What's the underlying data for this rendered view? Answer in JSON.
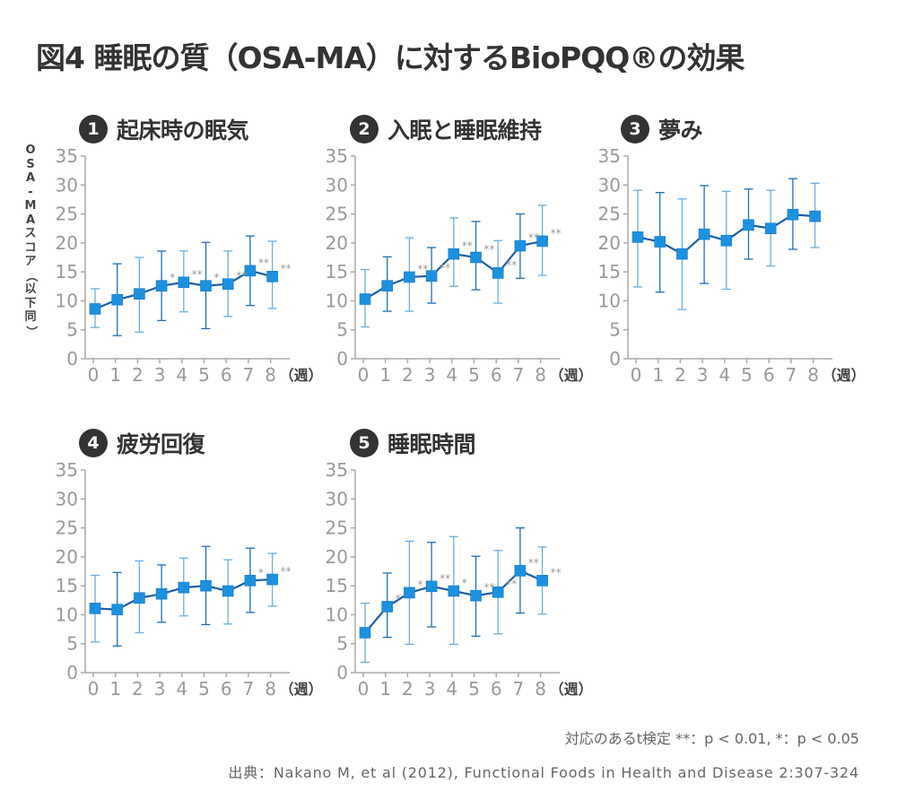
{
  "title": "図4  睡眠の質（OSA-MA）に対するBioPQQ®の効果",
  "y_axis_label_chars": [
    "O",
    "S",
    "A",
    "-",
    "M",
    "A",
    "ス",
    "コ",
    "ア",
    "（",
    "以",
    "下",
    "同",
    "）"
  ],
  "footnote": "対応のあるt検定 **：p < 0.01, *：p < 0.05",
  "source": "出典：Nakano M, et al (2012), Functional Foods in Health and Disease 2:307-324",
  "colors": {
    "line": "#1a5fa8",
    "marker": "#1e90e0",
    "errorbar_dark": "#1f6eb5",
    "errorbar_light": "#6aaee0",
    "axis": "#aaaaaa",
    "ticks": "#9a9a9a",
    "significance": "#999999"
  },
  "chart_data": [
    {
      "type": "line",
      "number": "1",
      "title": "起床時の眠気",
      "x": [
        0,
        1,
        2,
        3,
        4,
        5,
        6,
        7,
        8
      ],
      "xticklabels": [
        "0",
        "1",
        "2",
        "3",
        "4",
        "5",
        "6",
        "7",
        "8"
      ],
      "xunit": "（週）",
      "yticks": [
        0,
        5,
        10,
        15,
        20,
        25,
        30,
        35
      ],
      "ylim": [
        0,
        35
      ],
      "ylabel": "OSA-MAスコア（以下同）",
      "values": [
        8.6,
        10.2,
        11.2,
        12.6,
        13.2,
        12.6,
        12.9,
        15.2,
        14.2
      ],
      "err_low": [
        5.4,
        4.0,
        4.6,
        6.6,
        8.1,
        5.2,
        7.3,
        9.2,
        8.7
      ],
      "err_high": [
        12.1,
        16.4,
        17.5,
        18.6,
        18.6,
        20.1,
        18.6,
        21.2,
        20.3
      ],
      "significance": [
        "",
        "",
        "",
        "*",
        "**",
        "*",
        "**",
        "**",
        "**"
      ]
    },
    {
      "type": "line",
      "number": "2",
      "title": "入眠と睡眠維持",
      "x": [
        0,
        1,
        2,
        3,
        4,
        5,
        6,
        7,
        8
      ],
      "xticklabels": [
        "0",
        "1",
        "2",
        "3",
        "4",
        "5",
        "6",
        "7",
        "8"
      ],
      "xunit": "（週）",
      "yticks": [
        0,
        5,
        10,
        15,
        20,
        25,
        30,
        35
      ],
      "ylim": [
        0,
        35
      ],
      "values": [
        10.3,
        12.6,
        14.1,
        14.3,
        18.1,
        17.5,
        14.8,
        19.5,
        20.3
      ],
      "err_low": [
        5.5,
        8.2,
        8.2,
        9.6,
        12.5,
        11.9,
        9.6,
        13.9,
        14.4
      ],
      "err_high": [
        15.4,
        17.6,
        20.9,
        19.2,
        24.3,
        23.7,
        20.4,
        25.0,
        26.5
      ],
      "significance": [
        "",
        "",
        "**",
        "**",
        "**",
        "**",
        "**",
        "**",
        "**"
      ]
    },
    {
      "type": "line",
      "number": "3",
      "title": "夢み",
      "x": [
        0,
        1,
        2,
        3,
        4,
        5,
        6,
        7,
        8
      ],
      "xticklabels": [
        "0",
        "1",
        "2",
        "3",
        "4",
        "5",
        "6",
        "7",
        "8"
      ],
      "xunit": "（週）",
      "yticks": [
        0,
        5,
        10,
        15,
        20,
        25,
        30,
        35
      ],
      "ylim": [
        0,
        35
      ],
      "values": [
        21.0,
        20.2,
        18.1,
        21.5,
        20.4,
        23.1,
        22.5,
        24.9,
        24.6
      ],
      "err_low": [
        12.4,
        11.5,
        8.5,
        13.0,
        12.0,
        17.2,
        16.0,
        18.9,
        19.2
      ],
      "err_high": [
        29.1,
        28.7,
        27.6,
        29.9,
        28.9,
        29.3,
        29.1,
        31.1,
        30.3
      ],
      "significance": [
        "",
        "",
        "",
        "",
        "",
        "",
        "",
        "",
        ""
      ]
    },
    {
      "type": "line",
      "number": "4",
      "title": "疲労回復",
      "x": [
        0,
        1,
        2,
        3,
        4,
        5,
        6,
        7,
        8
      ],
      "xticklabels": [
        "0",
        "1",
        "2",
        "3",
        "4",
        "5",
        "6",
        "7",
        "8"
      ],
      "xunit": "（週）",
      "yticks": [
        0,
        5,
        10,
        15,
        20,
        25,
        30,
        35
      ],
      "ylim": [
        0,
        35
      ],
      "values": [
        11.1,
        10.9,
        12.9,
        13.6,
        14.7,
        15.0,
        14.1,
        15.9,
        16.1
      ],
      "err_low": [
        5.3,
        4.6,
        6.9,
        8.7,
        9.8,
        8.3,
        8.4,
        10.4,
        11.5
      ],
      "err_high": [
        16.8,
        17.3,
        19.3,
        18.6,
        19.8,
        21.8,
        19.5,
        21.5,
        20.6
      ],
      "significance": [
        "",
        "",
        "",
        "",
        "",
        "",
        "",
        "*",
        "**"
      ]
    },
    {
      "type": "line",
      "number": "5",
      "title": "睡眠時間",
      "x": [
        0,
        1,
        2,
        3,
        4,
        5,
        6,
        7,
        8
      ],
      "xticklabels": [
        "0",
        "1",
        "2",
        "3",
        "4",
        "5",
        "6",
        "7",
        "8"
      ],
      "xunit": "（週）",
      "yticks": [
        0,
        5,
        10,
        15,
        20,
        25,
        30,
        35
      ],
      "ylim": [
        0,
        35
      ],
      "values": [
        6.9,
        11.4,
        13.8,
        14.9,
        14.1,
        13.3,
        13.9,
        17.6,
        15.9
      ],
      "err_low": [
        1.8,
        6.1,
        4.9,
        7.9,
        4.9,
        6.3,
        6.7,
        10.3,
        10.1
      ],
      "err_high": [
        12.0,
        17.2,
        22.7,
        22.5,
        23.5,
        20.1,
        21.1,
        25.0,
        21.7
      ],
      "significance": [
        "",
        "*",
        "*",
        "**",
        "*",
        "**",
        "**",
        "**",
        "**"
      ]
    }
  ]
}
